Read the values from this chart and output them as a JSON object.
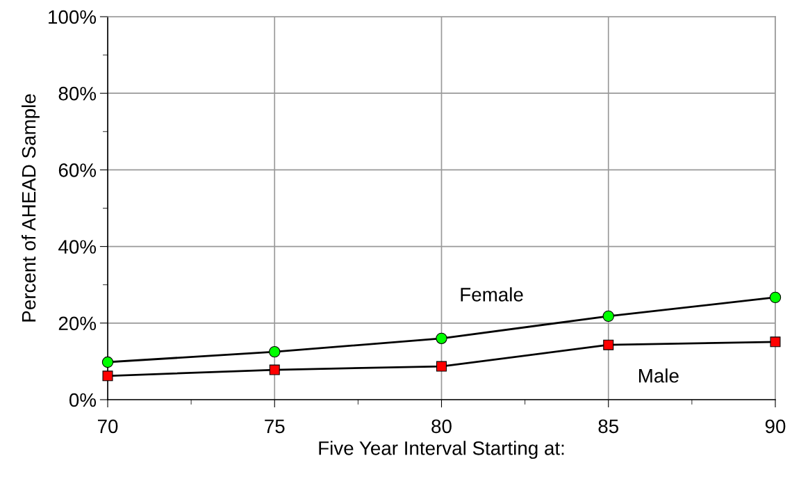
{
  "chart_data": {
    "type": "line",
    "xlabel": "Five Year Interval Starting at:",
    "ylabel": "Percent of AHEAD Sample",
    "x": [
      70,
      75,
      80,
      85,
      90
    ],
    "series": [
      {
        "name": "Female",
        "color": "#00ff00",
        "marker": "circle",
        "values": [
          9.8,
          12.5,
          16.0,
          21.8,
          26.7
        ]
      },
      {
        "name": "Male",
        "color": "#ff0000",
        "marker": "square",
        "values": [
          6.2,
          7.8,
          8.7,
          14.3,
          15.1
        ]
      }
    ],
    "xlim": [
      70,
      90
    ],
    "xticks": [
      70,
      75,
      80,
      85,
      90
    ],
    "ylim": [
      0,
      100
    ],
    "yticks": [
      {
        "value": 0,
        "label": "0%"
      },
      {
        "value": 20,
        "label": "20%"
      },
      {
        "value": 40,
        "label": "40%"
      },
      {
        "value": 60,
        "label": "60%"
      },
      {
        "value": 80,
        "label": "80%"
      },
      {
        "value": 100,
        "label": "100%"
      }
    ],
    "grid": true,
    "line_style": "solid",
    "legend": false
  }
}
